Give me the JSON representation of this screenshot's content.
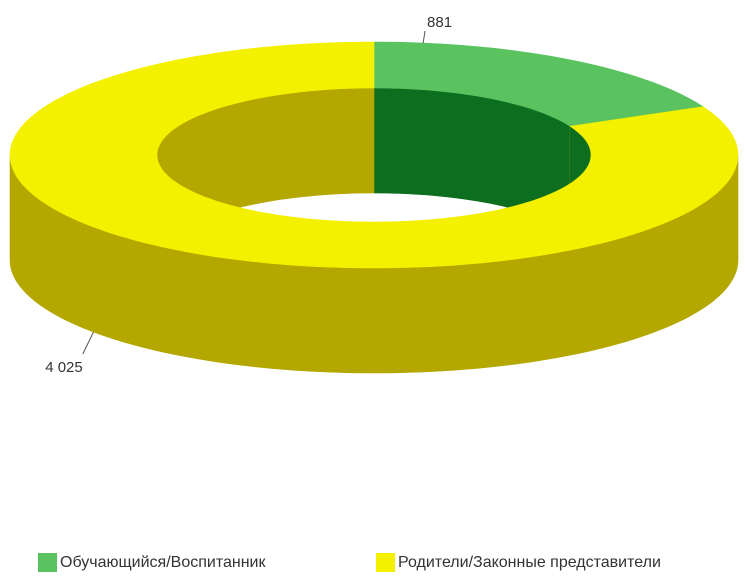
{
  "chart_data": {
    "type": "pie",
    "variant": "3d-donut",
    "title": "",
    "categories": [
      "Обучающийся/Воспитанник",
      "Родители/Законные представители"
    ],
    "values": [
      881,
      4025
    ],
    "data_labels": [
      "881",
      "4 025"
    ],
    "colors": {
      "Обучающийся/Воспитанник": {
        "top": "#5ac35f",
        "side": "#0c6e1e"
      },
      "Родители/Законные представители": {
        "top": "#f3f000",
        "side": "#b3a700"
      }
    },
    "legend_position": "bottom"
  }
}
